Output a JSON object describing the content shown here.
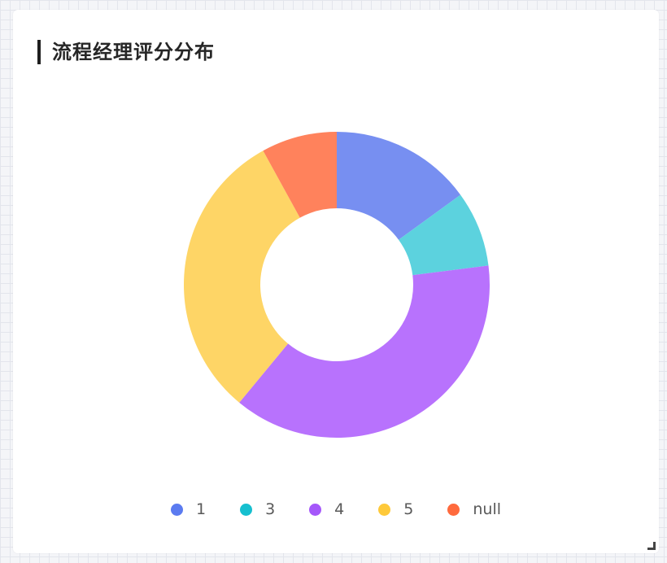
{
  "card": {
    "title": "流程经理评分分布"
  },
  "chart_data": {
    "type": "pie",
    "donut": true,
    "title": "流程经理评分分布",
    "legend_position": "bottom-center",
    "slices": [
      {
        "label": "1",
        "value": 15,
        "slice_color": "#778ff1",
        "legend_color": "#5b7bf0"
      },
      {
        "label": "3",
        "value": 8,
        "slice_color": "#5cd2de",
        "legend_color": "#16bfcf"
      },
      {
        "label": "4",
        "value": 38,
        "slice_color": "#b872fd",
        "legend_color": "#a557fa"
      },
      {
        "label": "5",
        "value": 31,
        "slice_color": "#fed566",
        "legend_color": "#fec93a"
      },
      {
        "label": "null",
        "value": 8,
        "slice_color": "#ff825c",
        "legend_color": "#ff6a3d"
      }
    ]
  }
}
